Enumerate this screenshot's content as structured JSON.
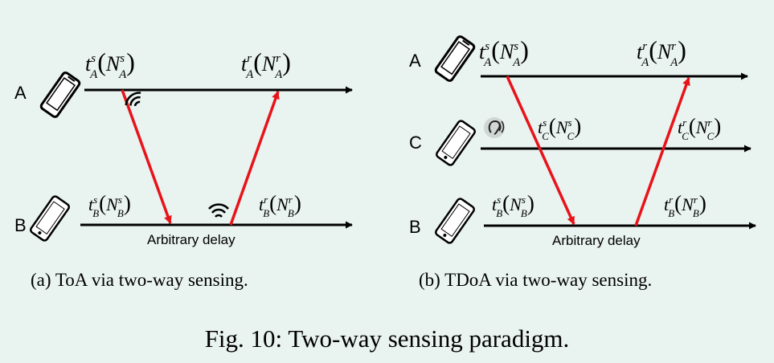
{
  "panel_a": {
    "caption": "(a) ToA via two-way sensing.",
    "nodes": {
      "A": "A",
      "B": "B"
    },
    "delay_label": "Arbitrary delay",
    "labels": {
      "A_send": {
        "t": "t",
        "sup": "s",
        "sub": "A",
        "N": "N",
        "Nsup": "s",
        "Nsub": "A"
      },
      "A_recv": {
        "t": "t",
        "sup": "r",
        "sub": "A",
        "N": "N",
        "Nsup": "r",
        "Nsub": "A"
      },
      "B_send": {
        "t": "t",
        "sup": "s",
        "sub": "B",
        "N": "N",
        "Nsup": "s",
        "Nsub": "B"
      },
      "B_recv": {
        "t": "t",
        "sup": "r",
        "sub": "B",
        "N": "N",
        "Nsup": "r",
        "Nsub": "B"
      }
    }
  },
  "panel_b": {
    "caption": "(b) TDoA via two-way sensing.",
    "nodes": {
      "A": "A",
      "C": "C",
      "B": "B"
    },
    "delay_label": "Arbitrary delay",
    "labels": {
      "A_send": {
        "t": "t",
        "sup": "s",
        "sub": "A",
        "N": "N",
        "Nsup": "s",
        "Nsub": "A"
      },
      "A_recv": {
        "t": "t",
        "sup": "r",
        "sub": "A",
        "N": "N",
        "Nsup": "r",
        "Nsub": "A"
      },
      "C_send": {
        "t": "t",
        "sup": "s",
        "sub": "C",
        "N": "N",
        "Nsup": "s",
        "Nsub": "C"
      },
      "C_recv": {
        "t": "t",
        "sup": "r",
        "sub": "C",
        "N": "N",
        "Nsup": "r",
        "Nsub": "C"
      },
      "B_send": {
        "t": "t",
        "sup": "s",
        "sub": "B",
        "N": "N",
        "Nsup": "s",
        "Nsub": "B"
      },
      "B_recv": {
        "t": "t",
        "sup": "r",
        "sub": "B",
        "N": "N",
        "Nsup": "r",
        "Nsub": "B"
      }
    }
  },
  "figure_caption": "Fig. 10: Two-way sensing paradigm.",
  "colors": {
    "background": "#e9f3ef",
    "signal": "#e8131a",
    "timeline": "#000000"
  }
}
